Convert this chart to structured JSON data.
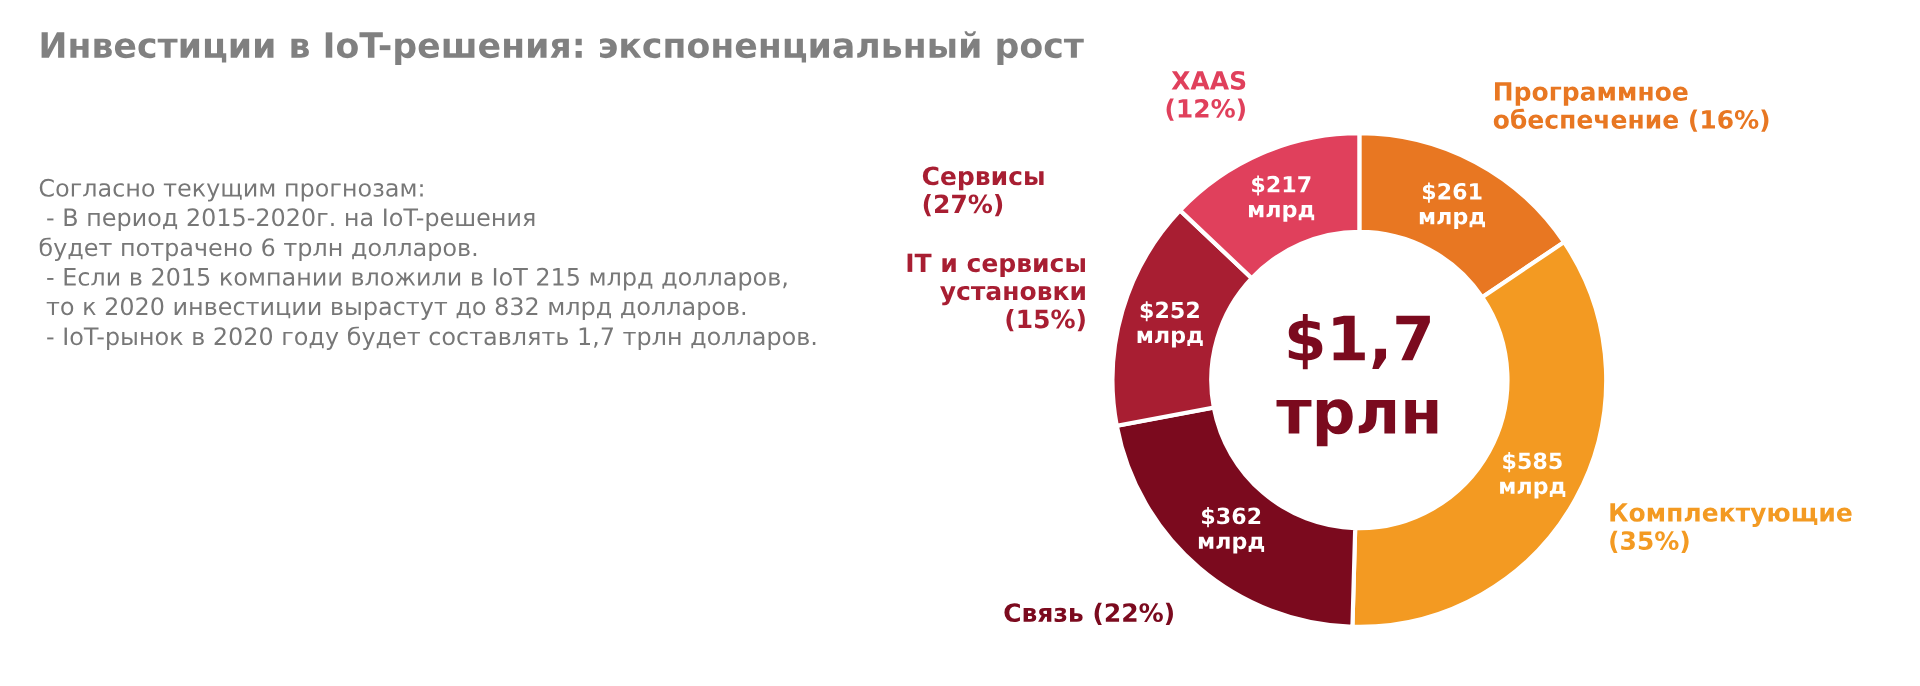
{
  "chart_data": {
    "type": "donut",
    "title": "Инвестиции в IoT-решения: экспоненциальный рост",
    "categories": [
      "Программное\nобеспечение (16%)",
      "Комплектующие\n(35%)",
      "Связь (22%)",
      "IT и сервисы\nустановки\n(15%)",
      "XAAS\n(12%)"
    ],
    "values": [
      261,
      585,
      362,
      252,
      217
    ],
    "colors": [
      "#e87722",
      "#f39a22",
      "#7b0a1e",
      "#a81e32",
      "#e0405c"
    ],
    "value_labels": [
      "$261\nмлрд",
      "$585\nмлрд",
      "$362\nмлрд",
      "$252\nмлрд",
      "$217\nмлрд"
    ],
    "annotations": [
      "Согласно текущим прогнозам:\n - В период 2015-2020г. на IoT-решения\nбудет потрачено 6 трлн долларов.\n - Если в 2015 компании вложили в IoT 215 млрд долларов,\n то к 2020 инвестиции вырастут до 832 млрд долларов.\n - IoT-рынок в 2020 году будет составлять 1,7 трлн долларов.",
      "$1,7\nтрлн",
      "Сервисы\n(27%)"
    ],
    "legend": false
  }
}
